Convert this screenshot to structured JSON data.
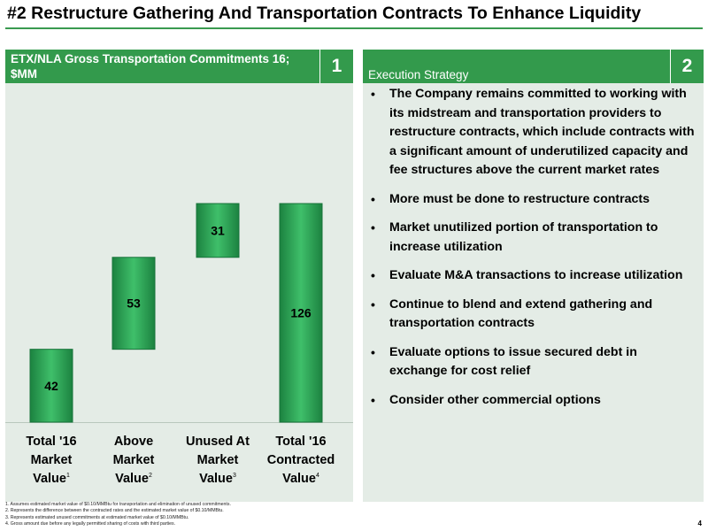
{
  "page": {
    "title": "#2 Restructure Gathering And Transportation Contracts To Enhance Liquidity",
    "page_number": "4"
  },
  "left_panel": {
    "header": "ETX/NLA Gross Transportation Commitments 16; $MM",
    "number": "1"
  },
  "right_panel": {
    "header": "Execution Strategy",
    "number": "2",
    "bullets": [
      "The Company remains committed to working with its midstream and transportation providers to restructure contracts, which include contracts with a significant amount of underutilized capacity and fee structures above the current market rates",
      "More must be done to restructure contracts",
      "Market unutilized portion of transportation to increase  utilization",
      "Evaluate M&A transactions to increase utilization",
      "Continue to blend and extend gathering and transportation contracts",
      "Evaluate options to issue secured debt in exchange for cost relief",
      "Consider other commercial options"
    ]
  },
  "footnotes": [
    "1. Assumes estimated market value of $0.10/MMBtu for transportation and elimination of unused commitments.",
    "2. Represents the difference between the contracted rates and the estimated market value of $0.10/MMBtu.",
    "3. Represents estimated unused commitments at estimated market value of $0.10/MMBtu.",
    "4. Gross amount due before any legally permitted sharing of costs with third parties."
  ],
  "colors": {
    "header_green": "#339a4c",
    "panel_bg": "#e4ece6",
    "bar_dark": "#1f8a44",
    "bar_light": "#3fbf6a"
  },
  "chart_data": {
    "type": "waterfall",
    "ylim": [
      0,
      126
    ],
    "categories": [
      {
        "lines": [
          "Total '16",
          "Market",
          "Value"
        ],
        "sup": "1"
      },
      {
        "lines": [
          "Above",
          "Market",
          "Value"
        ],
        "sup": "2"
      },
      {
        "lines": [
          "Unused At",
          "Market",
          "Value"
        ],
        "sup": "3"
      },
      {
        "lines": [
          "Total '16",
          "Contracted",
          "Value"
        ],
        "sup": "4"
      }
    ],
    "bars": [
      {
        "base": 0,
        "value": 42,
        "label": "42"
      },
      {
        "base": 42,
        "value": 53,
        "label": "53"
      },
      {
        "base": 95,
        "value": 31,
        "label": "31"
      },
      {
        "base": 0,
        "value": 126,
        "label": "126"
      }
    ]
  }
}
